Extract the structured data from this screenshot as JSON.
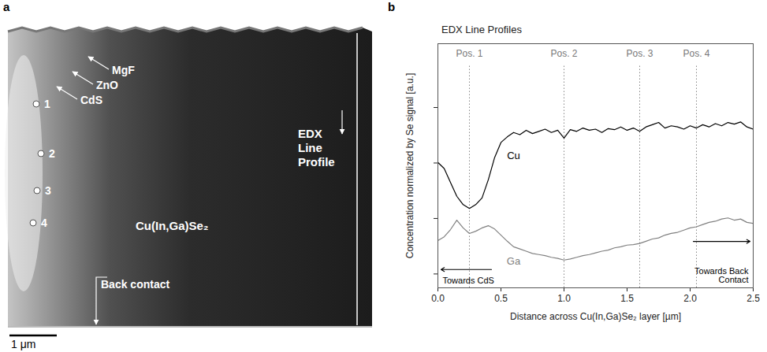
{
  "figure_panel_a": {
    "letter": "a",
    "layer_labels": [
      "MgF",
      "ZnO",
      "CdS"
    ],
    "points": [
      "1",
      "2",
      "3",
      "4"
    ],
    "material": "Cu(In,Ga)Se₂",
    "back_contact": "Back contact",
    "edx_label": "EDX Line Profile",
    "scale_bar": "1 μm"
  },
  "chart_data": {
    "letter": "b",
    "type": "line",
    "title": "EDX Line Profiles",
    "x_label": "Distance across Cu(In,Ga)Se₂ layer [µm]",
    "y_label": "Concentration normalized by Se signal [a.u.]",
    "xlim": [
      0,
      2.5
    ],
    "xticks": [
      {
        "value": 0,
        "label": "0.0"
      },
      0.5,
      {
        "value": 1,
        "label": "1.0"
      },
      1.5,
      {
        "value": 2,
        "label": "2.0"
      },
      2.5
    ],
    "ylim": [
      0,
      4.4
    ],
    "yticks": [
      0.25,
      1.25,
      2.25,
      3.25
    ],
    "tick_labels": "x",
    "x": [
      0,
      0.05,
      0.1,
      0.15,
      0.2,
      0.25,
      0.3,
      0.35,
      0.4,
      0.45,
      0.5,
      0.55,
      0.6,
      0.65,
      0.7,
      0.75,
      0.8,
      0.85,
      0.9,
      0.95,
      1,
      1.05,
      1.1,
      1.15,
      1.2,
      1.25,
      1.3,
      1.35,
      1.4,
      1.45,
      1.5,
      1.55,
      1.6,
      1.65,
      1.7,
      1.75,
      1.8,
      1.85,
      1.9,
      1.95,
      2,
      2.05,
      2.1,
      2.15,
      2.2,
      2.25,
      2.3,
      2.35,
      2.4,
      2.45,
      2.5
    ],
    "series": [
      {
        "name": "Cu",
        "color": "#000000",
        "values": [
          2.26,
          2.15,
          1.9,
          1.65,
          1.5,
          1.43,
          1.5,
          1.62,
          1.95,
          2.35,
          2.62,
          2.72,
          2.8,
          2.76,
          2.84,
          2.78,
          2.82,
          2.86,
          2.8,
          2.84,
          2.7,
          2.85,
          2.82,
          2.88,
          2.84,
          2.86,
          2.8,
          2.87,
          2.85,
          2.9,
          2.84,
          2.88,
          2.82,
          2.9,
          2.94,
          2.98,
          2.88,
          2.92,
          2.9,
          2.86,
          2.92,
          2.88,
          2.94,
          2.9,
          2.96,
          2.92,
          2.98,
          2.95,
          2.99,
          2.9,
          2.86
        ]
      },
      {
        "name": "Ga",
        "color": "#808080",
        "values": [
          0.85,
          0.92,
          1.05,
          1.22,
          1.08,
          0.98,
          1.02,
          1.08,
          1.12,
          1.06,
          0.95,
          0.84,
          0.74,
          0.7,
          0.66,
          0.62,
          0.6,
          0.58,
          0.55,
          0.53,
          0.5,
          0.52,
          0.55,
          0.58,
          0.6,
          0.63,
          0.66,
          0.68,
          0.72,
          0.74,
          0.77,
          0.78,
          0.8,
          0.84,
          0.88,
          0.9,
          0.95,
          0.98,
          1.0,
          1.04,
          1.08,
          1.1,
          1.14,
          1.18,
          1.2,
          1.24,
          1.26,
          1.22,
          1.24,
          1.18,
          1.16
        ]
      }
    ],
    "positions": [
      {
        "label": "Pos. 1",
        "x": 0.25
      },
      {
        "label": "Pos. 2",
        "x": 1.0
      },
      {
        "label": "Pos. 3",
        "x": 1.6
      },
      {
        "label": "Pos. 4",
        "x": 2.05
      }
    ],
    "direction_labels": [
      "Towards CdS",
      "Towards Back Contact"
    ]
  }
}
